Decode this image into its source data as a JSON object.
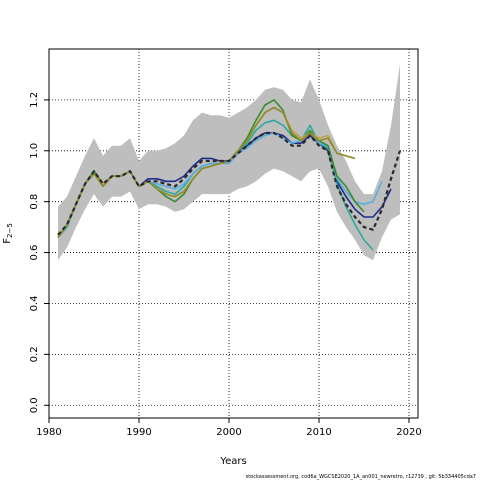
{
  "chart_data": {
    "type": "line",
    "xlabel": "Years",
    "ylabel": "F",
    "ylabel_subscript": "2−5",
    "xlim": [
      1980,
      2021
    ],
    "ylim": [
      -0.05,
      1.4
    ],
    "x_ticks": [
      1980,
      1990,
      2000,
      2010,
      2020
    ],
    "y_ticks": [
      0.0,
      0.2,
      0.4,
      0.6,
      0.8,
      1.0,
      1.2
    ],
    "grid": true,
    "footer": "stockassessment.org, cod6a_WGCSE2020_1A_an001_newretro, r12739 , git: 5b334405cda7",
    "confidence_band": {
      "color": "#bebebe",
      "years": [
        1981,
        1982,
        1983,
        1984,
        1985,
        1986,
        1987,
        1988,
        1989,
        1990,
        1991,
        1992,
        1993,
        1994,
        1995,
        1996,
        1997,
        1998,
        1999,
        2000,
        2001,
        2002,
        2003,
        2004,
        2005,
        2006,
        2007,
        2008,
        2009,
        2010,
        2011,
        2012,
        2013,
        2014,
        2015,
        2016,
        2017,
        2018,
        2019
      ],
      "upper": [
        0.78,
        0.82,
        0.9,
        0.98,
        1.05,
        0.98,
        1.02,
        1.02,
        1.05,
        0.96,
        1.0,
        1.0,
        1.01,
        1.03,
        1.06,
        1.12,
        1.15,
        1.14,
        1.14,
        1.13,
        1.15,
        1.17,
        1.2,
        1.24,
        1.25,
        1.24,
        1.2,
        1.19,
        1.28,
        1.2,
        1.1,
        1.02,
        0.96,
        0.88,
        0.83,
        0.83,
        0.92,
        1.1,
        1.34
      ],
      "lower": [
        0.57,
        0.62,
        0.7,
        0.77,
        0.83,
        0.78,
        0.82,
        0.82,
        0.84,
        0.77,
        0.79,
        0.79,
        0.78,
        0.76,
        0.77,
        0.8,
        0.83,
        0.83,
        0.83,
        0.83,
        0.85,
        0.86,
        0.88,
        0.91,
        0.93,
        0.92,
        0.9,
        0.88,
        0.92,
        0.93,
        0.86,
        0.76,
        0.7,
        0.65,
        0.59,
        0.57,
        0.66,
        0.73,
        0.75
      ]
    },
    "series": [
      {
        "color": "#1f2a8a",
        "width": 1.6,
        "dash": "",
        "x": [
          1981,
          1982,
          1983,
          1984,
          1985,
          1986,
          1987,
          1988,
          1989,
          1990,
          1991,
          1992,
          1993,
          1994,
          1995,
          1996,
          1997,
          1998,
          1999,
          2000,
          2001,
          2002,
          2003,
          2004,
          2005,
          2006,
          2007,
          2008,
          2009,
          2010,
          2011,
          2012,
          2013,
          2014,
          2015,
          2016,
          2017,
          2018
        ],
        "y": [
          0.66,
          0.71,
          0.79,
          0.87,
          0.92,
          0.87,
          0.9,
          0.9,
          0.92,
          0.86,
          0.89,
          0.89,
          0.88,
          0.88,
          0.9,
          0.94,
          0.97,
          0.97,
          0.96,
          0.96,
          1.0,
          1.02,
          1.05,
          1.07,
          1.07,
          1.06,
          1.03,
          1.03,
          1.06,
          1.03,
          1.0,
          0.88,
          0.82,
          0.77,
          0.74,
          0.74,
          0.78,
          0.85
        ]
      },
      {
        "color": "#2fa89e",
        "width": 1.6,
        "dash": "",
        "x": [
          1981,
          1982,
          1983,
          1984,
          1985,
          1986,
          1987,
          1988,
          1989,
          1990,
          1991,
          1992,
          1993,
          1994,
          1995,
          1996,
          1997,
          1998,
          1999,
          2000,
          2001,
          2002,
          2003,
          2004,
          2005,
          2006,
          2007,
          2008,
          2009,
          2010,
          2011,
          2012,
          2013,
          2014,
          2015,
          2016
        ],
        "y": [
          0.66,
          0.7,
          0.79,
          0.87,
          0.92,
          0.87,
          0.9,
          0.9,
          0.92,
          0.86,
          0.88,
          0.86,
          0.84,
          0.83,
          0.86,
          0.91,
          0.94,
          0.95,
          0.95,
          0.96,
          1.0,
          1.03,
          1.08,
          1.11,
          1.12,
          1.1,
          1.06,
          1.04,
          1.1,
          1.03,
          1.01,
          0.87,
          0.78,
          0.71,
          0.65,
          0.61
        ]
      },
      {
        "color": "#5aaee0",
        "width": 1.6,
        "dash": "",
        "x": [
          1981,
          1982,
          1983,
          1984,
          1985,
          1986,
          1987,
          1988,
          1989,
          1990,
          1991,
          1992,
          1993,
          1994,
          1995,
          1996,
          1997,
          1998,
          1999,
          2000,
          2001,
          2002,
          2003,
          2004,
          2005,
          2006,
          2007,
          2008,
          2009,
          2010,
          2011,
          2012,
          2013,
          2014,
          2015,
          2016,
          2017
        ],
        "y": [
          0.66,
          0.71,
          0.79,
          0.87,
          0.92,
          0.87,
          0.9,
          0.9,
          0.92,
          0.86,
          0.88,
          0.87,
          0.86,
          0.85,
          0.87,
          0.91,
          0.94,
          0.95,
          0.95,
          0.95,
          0.99,
          1.01,
          1.04,
          1.06,
          1.07,
          1.05,
          1.03,
          1.04,
          1.08,
          1.03,
          1.02,
          0.89,
          0.84,
          0.8,
          0.79,
          0.8,
          0.88
        ]
      },
      {
        "color": "#3b8c2e",
        "width": 1.6,
        "dash": "",
        "x": [
          1981,
          1982,
          1983,
          1984,
          1985,
          1986,
          1987,
          1988,
          1989,
          1990,
          1991,
          1992,
          1993,
          1994,
          1995,
          1996,
          1997,
          1998,
          1999,
          2000,
          2001,
          2002,
          2003,
          2004,
          2005,
          2006,
          2007,
          2008,
          2009,
          2010,
          2011,
          2012,
          2013,
          2014,
          2015
        ],
        "y": [
          0.66,
          0.71,
          0.79,
          0.87,
          0.92,
          0.87,
          0.9,
          0.9,
          0.92,
          0.86,
          0.88,
          0.85,
          0.82,
          0.8,
          0.83,
          0.89,
          0.93,
          0.94,
          0.95,
          0.96,
          1.0,
          1.05,
          1.12,
          1.18,
          1.2,
          1.16,
          1.06,
          1.04,
          1.08,
          1.04,
          1.02,
          0.9,
          0.86,
          0.8,
          0.76
        ]
      },
      {
        "color": "#c0a24a",
        "width": 1.6,
        "dash": "",
        "x": [
          1981,
          1982,
          1983,
          1984,
          1985,
          1986,
          1987,
          1988,
          1989,
          1990,
          1991,
          1992,
          1993,
          1994,
          1995,
          1996,
          1997,
          1998,
          1999,
          2000,
          2001,
          2002,
          2003,
          2004,
          2005,
          2006,
          2007,
          2008,
          2009,
          2010,
          2011,
          2012,
          2013,
          2014
        ],
        "y": [
          0.66,
          0.71,
          0.79,
          0.87,
          0.91,
          0.87,
          0.9,
          0.9,
          0.92,
          0.86,
          0.88,
          0.85,
          0.83,
          0.82,
          0.84,
          0.89,
          0.93,
          0.94,
          0.95,
          0.96,
          1.0,
          1.04,
          1.1,
          1.15,
          1.17,
          1.15,
          1.08,
          1.05,
          1.07,
          1.05,
          1.06,
          0.99,
          0.98,
          0.97
        ]
      },
      {
        "color": "#8f8a2a",
        "width": 1.6,
        "dash": "",
        "x": [
          1981,
          1982,
          1983,
          1984,
          1985,
          1986,
          1987,
          1988,
          1989,
          1990,
          1991,
          1992,
          1993,
          1994,
          1995,
          1996,
          1997,
          1998,
          1999,
          2000,
          2001,
          2002,
          2003,
          2004,
          2005,
          2006,
          2007,
          2008,
          2009,
          2010,
          2011,
          2012,
          2013,
          2014
        ],
        "y": [
          0.66,
          0.71,
          0.79,
          0.87,
          0.91,
          0.86,
          0.9,
          0.9,
          0.92,
          0.86,
          0.88,
          0.85,
          0.83,
          0.82,
          0.84,
          0.89,
          0.93,
          0.94,
          0.95,
          0.96,
          1.0,
          1.04,
          1.1,
          1.15,
          1.17,
          1.15,
          1.07,
          1.04,
          1.07,
          1.04,
          1.05,
          0.99,
          0.98,
          0.97
        ]
      },
      {
        "color": "#2a2a2a",
        "width": 2.2,
        "dash": "4,3",
        "x": [
          1981,
          1982,
          1983,
          1984,
          1985,
          1986,
          1987,
          1988,
          1989,
          1990,
          1991,
          1992,
          1993,
          1994,
          1995,
          1996,
          1997,
          1998,
          1999,
          2000,
          2001,
          2002,
          2003,
          2004,
          2005,
          2006,
          2007,
          2008,
          2009,
          2010,
          2011,
          2012,
          2013,
          2014,
          2015,
          2016,
          2017,
          2018,
          2019
        ],
        "y": [
          0.67,
          0.71,
          0.79,
          0.87,
          0.92,
          0.87,
          0.9,
          0.9,
          0.92,
          0.86,
          0.88,
          0.88,
          0.87,
          0.86,
          0.89,
          0.93,
          0.96,
          0.96,
          0.96,
          0.96,
          0.99,
          1.02,
          1.05,
          1.07,
          1.07,
          1.05,
          1.02,
          1.02,
          1.06,
          1.02,
          1.0,
          0.86,
          0.79,
          0.74,
          0.7,
          0.69,
          0.77,
          0.89,
          1.0
        ]
      }
    ]
  }
}
